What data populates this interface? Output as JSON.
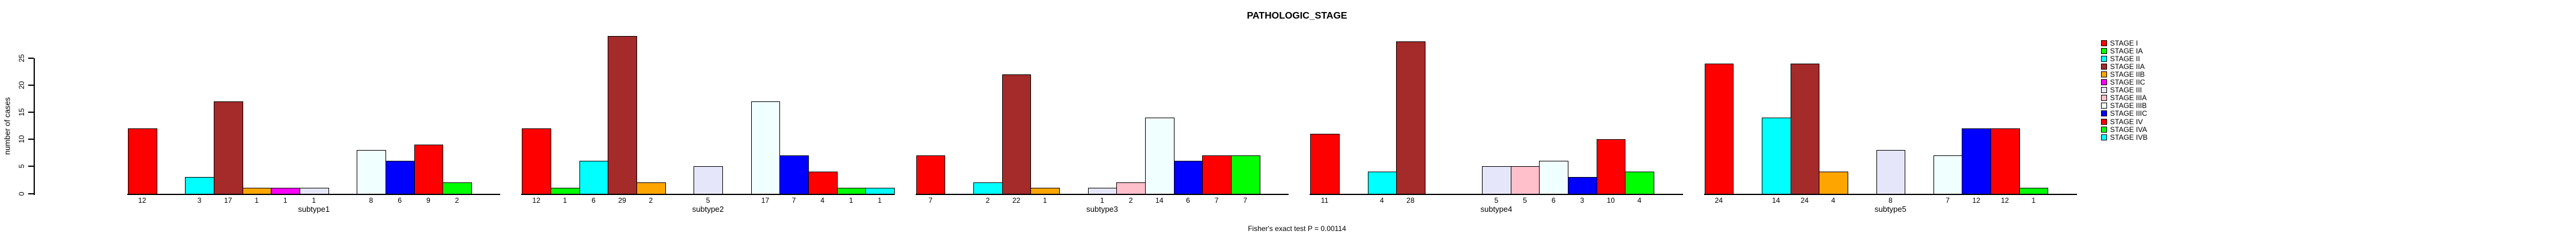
{
  "chart_data": {
    "type": "bar",
    "title": "PATHOLOGIC_STAGE",
    "ylabel": "number of cases",
    "footnote": "Fisher's exact test P = 0.00114",
    "yticks": [
      0,
      5,
      10,
      15,
      20,
      25
    ],
    "ylim": [
      0,
      25
    ],
    "grid": false,
    "legend_position": "right",
    "background": "#FFFFFF",
    "axis_color": "#000000",
    "text_color": "#000000",
    "stages": [
      {
        "label": "STAGE I",
        "color": "#FF0000"
      },
      {
        "label": "STAGE IA",
        "color": "#00FF00"
      },
      {
        "label": "STAGE II",
        "color": "#00FFFF"
      },
      {
        "label": "STAGE IIA",
        "color": "#A52A2A"
      },
      {
        "label": "STAGE IIB",
        "color": "#FFA500"
      },
      {
        "label": "STAGE IIC",
        "color": "#FF00FF"
      },
      {
        "label": "STAGE III",
        "color": "#E6E6FA"
      },
      {
        "label": "STAGE IIIA",
        "color": "#FFC0CB"
      },
      {
        "label": "STAGE IIIB",
        "color": "#F0FFFF"
      },
      {
        "label": "STAGE IIIC",
        "color": "#0000FF"
      },
      {
        "label": "STAGE IV",
        "color": "#FF0000"
      },
      {
        "label": "STAGE IVA",
        "color": "#00FF00"
      },
      {
        "label": "STAGE IVB",
        "color": "#00FFFF"
      }
    ],
    "groups": [
      {
        "name": "subtype1",
        "values": [
          12,
          0,
          3,
          17,
          1,
          1,
          1,
          0,
          8,
          6,
          9,
          2,
          0
        ]
      },
      {
        "name": "subtype2",
        "values": [
          12,
          1,
          6,
          29,
          2,
          0,
          5,
          0,
          17,
          7,
          4,
          1,
          1
        ]
      },
      {
        "name": "subtype3",
        "values": [
          7,
          0,
          2,
          22,
          1,
          0,
          1,
          2,
          14,
          6,
          7,
          7,
          0
        ]
      },
      {
        "name": "subtype4",
        "values": [
          11,
          0,
          4,
          28,
          0,
          0,
          5,
          5,
          6,
          3,
          10,
          4,
          0
        ]
      },
      {
        "name": "subtype5",
        "values": [
          24,
          0,
          14,
          24,
          4,
          0,
          8,
          0,
          7,
          12,
          12,
          1,
          0
        ]
      }
    ]
  }
}
